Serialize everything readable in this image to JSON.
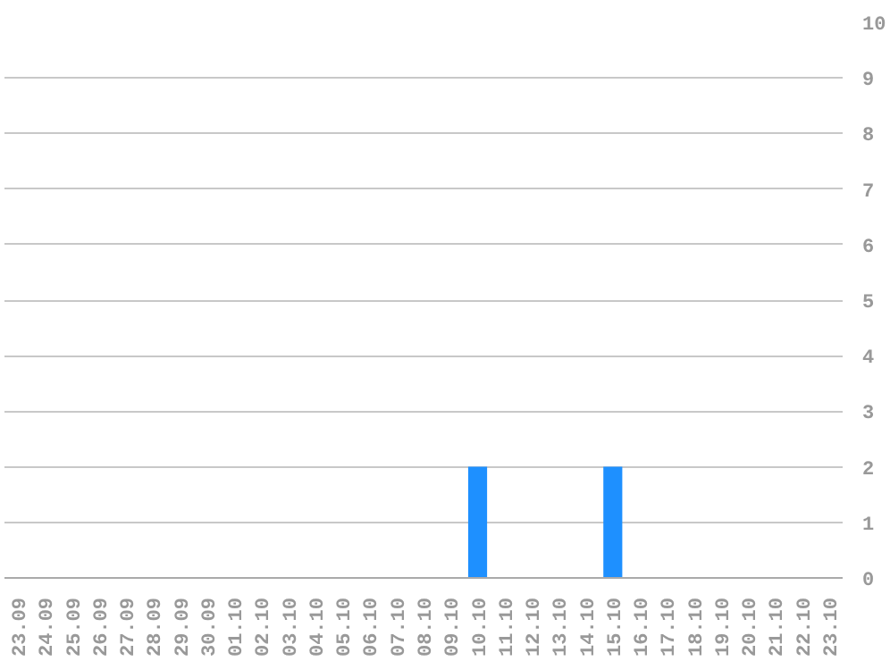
{
  "chart_data": {
    "type": "bar",
    "categories": [
      "23.09",
      "24.09",
      "25.09",
      "26.09",
      "27.09",
      "28.09",
      "29.09",
      "30.09",
      "01.10",
      "02.10",
      "03.10",
      "04.10",
      "05.10",
      "06.10",
      "07.10",
      "08.10",
      "09.10",
      "10.10",
      "11.10",
      "12.10",
      "13.10",
      "14.10",
      "15.10",
      "16.10",
      "17.10",
      "18.10",
      "19.10",
      "20.10",
      "21.10",
      "22.10",
      "23.10"
    ],
    "values": [
      0,
      0,
      0,
      0,
      0,
      0,
      0,
      0,
      0,
      0,
      0,
      0,
      0,
      0,
      0,
      0,
      0,
      2,
      0,
      0,
      0,
      0,
      2,
      0,
      0,
      0,
      0,
      0,
      0,
      0,
      0
    ],
    "color": "#1e90ff",
    "ylim": [
      0,
      10
    ],
    "yticks": [
      0,
      1,
      2,
      3,
      4,
      5,
      6,
      7,
      8,
      9,
      10
    ],
    "grid": "y"
  }
}
